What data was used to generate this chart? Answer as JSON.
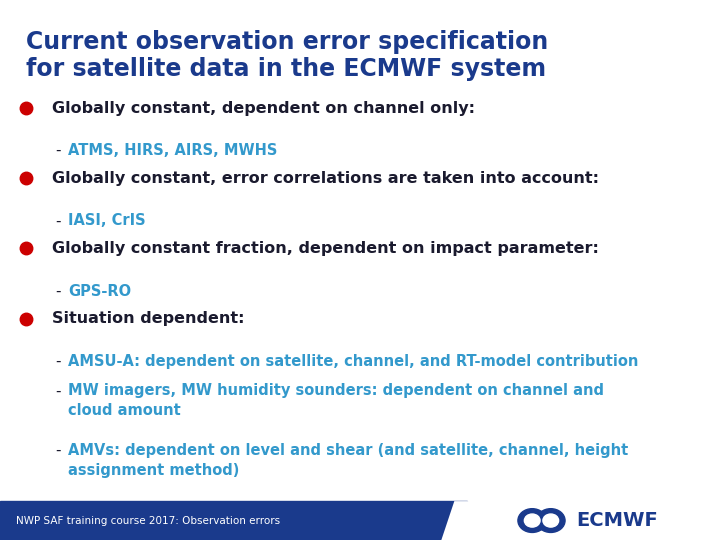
{
  "title_line1": "Current observation error specification",
  "title_line2": "for satellite data in the ECMWF system",
  "title_color": "#1a3a8c",
  "bg_color": "#ffffff",
  "bullet_color": "#cc0000",
  "text_color": "#1a1a2e",
  "highlight_color": "#3399cc",
  "footer_bg": "#1a3a8c",
  "footer_text": "NWP SAF training course 2017: Observation errors",
  "footer_text_color": "#ffffff",
  "ecmwf_color": "#1a3a8c",
  "bullets": [
    {
      "main": "Globally constant, dependent on channel only:",
      "subs": [
        "ATMS, HIRS, AIRS, MWHS"
      ],
      "sub_highlight": [
        true
      ]
    },
    {
      "main": "Globally constant, error correlations are taken into account:",
      "subs": [
        "IASI, CrIS"
      ],
      "sub_highlight": [
        true
      ]
    },
    {
      "main": "Globally constant fraction, dependent on impact parameter:",
      "subs": [
        "GPS-RO"
      ],
      "sub_highlight": [
        true
      ]
    },
    {
      "main": "Situation dependent:",
      "subs": [
        "AMSU-A: dependent on satellite, channel, and RT-model contribution",
        "MW imagers, MW humidity sounders: dependent on channel and\ncloud amount",
        "AMVs: dependent on level and shear (and satellite, channel, height\nassignment method)"
      ],
      "sub_highlight": [
        true,
        true,
        true
      ]
    }
  ]
}
